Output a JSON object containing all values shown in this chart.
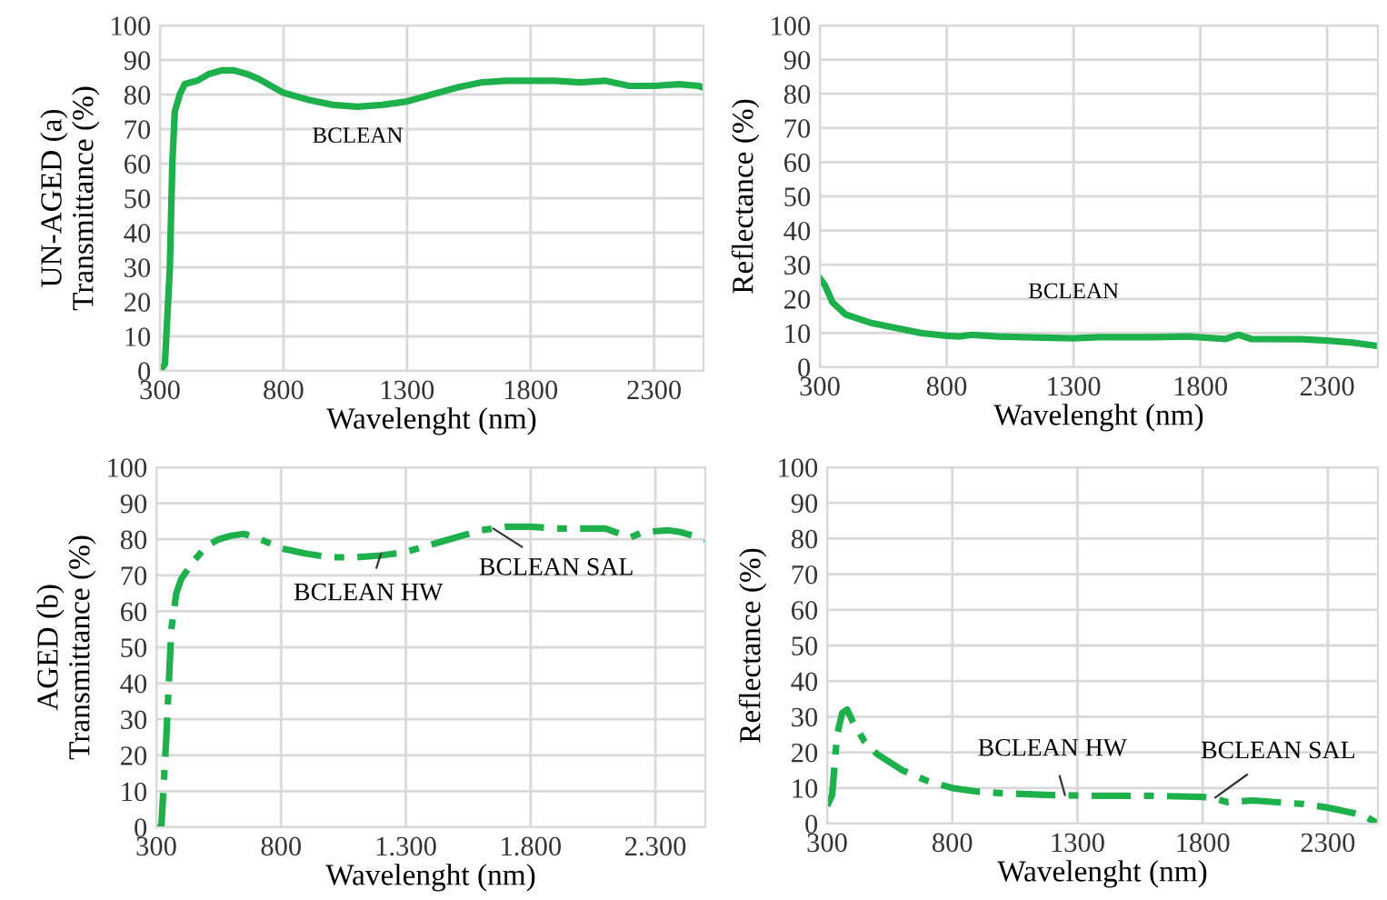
{
  "chart_data": [
    {
      "type": "line",
      "xlabel": "Wavelenght (nm)",
      "ylabel": "UN-AGED (a)\nTransmittance (%)",
      "xlim": [
        300,
        2500
      ],
      "xticks": [
        300,
        800,
        1300,
        1800,
        2300
      ],
      "ylim": [
        0,
        100
      ],
      "yticks": [
        0,
        10,
        20,
        30,
        40,
        50,
        60,
        70,
        80,
        90,
        100
      ],
      "grid": true,
      "line_style": "solid",
      "annotations": [
        {
          "text": "BCLEAN",
          "x": 1100,
          "y": 76.5
        }
      ],
      "series": [
        {
          "color": "#1db04b",
          "x": [
            300,
            320,
            340,
            350,
            360,
            380,
            400,
            450,
            500,
            550,
            600,
            650,
            700,
            800,
            900,
            1000,
            1100,
            1200,
            1300,
            1400,
            1500,
            1600,
            1700,
            1800,
            1900,
            2000,
            2100,
            2200,
            2300,
            2400,
            2480,
            2500
          ],
          "values": [
            0,
            2,
            30,
            60,
            75,
            80,
            83,
            84,
            86,
            87,
            87,
            86,
            84.5,
            80.5,
            78.5,
            77,
            76.5,
            77,
            78,
            80,
            82,
            83.5,
            84,
            84,
            84,
            83.5,
            84,
            82.5,
            82.5,
            83,
            82.5,
            82
          ]
        }
      ]
    },
    {
      "type": "line",
      "xlabel": "Wavelenght (nm)",
      "ylabel": "Reflectance (%)",
      "xlim": [
        300,
        2500
      ],
      "xticks": [
        300,
        800,
        1300,
        1800,
        2300
      ],
      "ylim": [
        0,
        100
      ],
      "yticks": [
        0,
        10,
        20,
        30,
        40,
        50,
        60,
        70,
        80,
        90,
        100
      ],
      "grid": true,
      "line_style": "solid",
      "annotations": [
        {
          "text": "BCLEAN",
          "x": 1300,
          "y": 8.5
        }
      ],
      "series": [
        {
          "color": "#1db04b",
          "x": [
            300,
            320,
            350,
            400,
            500,
            600,
            700,
            800,
            850,
            900,
            1000,
            1100,
            1300,
            1400,
            1600,
            1750,
            1900,
            1950,
            2000,
            2200,
            2300,
            2400,
            2500
          ],
          "values": [
            26,
            24,
            19,
            15.5,
            13,
            11.5,
            10,
            9.2,
            9,
            9.5,
            9,
            8.8,
            8.5,
            8.8,
            8.8,
            9,
            8.3,
            9.5,
            8.3,
            8.2,
            7.8,
            7.2,
            6.2
          ]
        }
      ]
    },
    {
      "type": "line",
      "xlabel": "Wavelenght (nm)",
      "ylabel": "AGED (b)\nTransmittance (%)",
      "xlim": [
        300,
        2500
      ],
      "xticks": [
        300,
        800,
        {
          "value": 1300,
          "label": "1.300"
        },
        {
          "value": 1800,
          "label": "1.800"
        },
        {
          "value": 2300,
          "label": "2.300"
        }
      ],
      "ylim": [
        0,
        100
      ],
      "yticks": [
        0,
        10,
        20,
        30,
        40,
        50,
        60,
        70,
        80,
        90,
        100
      ],
      "grid": true,
      "line_style": "dashed",
      "annotations": [
        {
          "text": "BCLEAN HW",
          "x": 1200,
          "y": 76
        },
        {
          "text": "BCLEAN SAL",
          "x": 1650,
          "y": 83
        }
      ],
      "series": [
        {
          "color": "#1db04b",
          "x": [
            300,
            320,
            340,
            360,
            380,
            400,
            450,
            500,
            550,
            600,
            650,
            700,
            800,
            900,
            1000,
            1100,
            1200,
            1300,
            1400,
            1500,
            1600,
            1700,
            1800,
            1900,
            2000,
            2100,
            2200,
            2250,
            2350,
            2400,
            2500
          ],
          "values": [
            0,
            0,
            25,
            55,
            65,
            69,
            74,
            78,
            80,
            81,
            81.5,
            80.5,
            77.5,
            76,
            75,
            75,
            75.5,
            76.5,
            78.5,
            80.5,
            82.5,
            83.5,
            83.5,
            83,
            83,
            83,
            80.5,
            82,
            82.5,
            82,
            80
          ]
        }
      ]
    },
    {
      "type": "line",
      "xlabel": "Wavelenght (nm)",
      "ylabel": "Reflectance (%)",
      "xlim": [
        300,
        2500
      ],
      "xticks": [
        300,
        800,
        1300,
        1800,
        2300
      ],
      "ylim": [
        0,
        100
      ],
      "yticks": [
        0,
        10,
        20,
        30,
        40,
        50,
        60,
        70,
        80,
        90,
        100
      ],
      "grid": true,
      "line_style": "dashed",
      "annotations": [
        {
          "text": "BCLEAN HW",
          "x": 1250,
          "y": 8
        },
        {
          "text": "BCLEAN SAL",
          "x": 1850,
          "y": 7.3
        }
      ],
      "series": [
        {
          "color": "#1db04b",
          "x": [
            300,
            320,
            340,
            360,
            380,
            400,
            450,
            500,
            600,
            700,
            800,
            900,
            1000,
            1200,
            1400,
            1600,
            1800,
            1850,
            1900,
            2000,
            2100,
            2200,
            2300,
            2400,
            2450,
            2500
          ],
          "values": [
            5,
            8,
            25,
            31,
            32,
            29,
            23,
            19.5,
            15,
            12,
            10,
            9,
            8.5,
            8,
            7.8,
            7.8,
            7.5,
            7,
            6,
            6.5,
            6,
            5.5,
            4.5,
            3,
            2,
            0
          ]
        }
      ]
    }
  ]
}
